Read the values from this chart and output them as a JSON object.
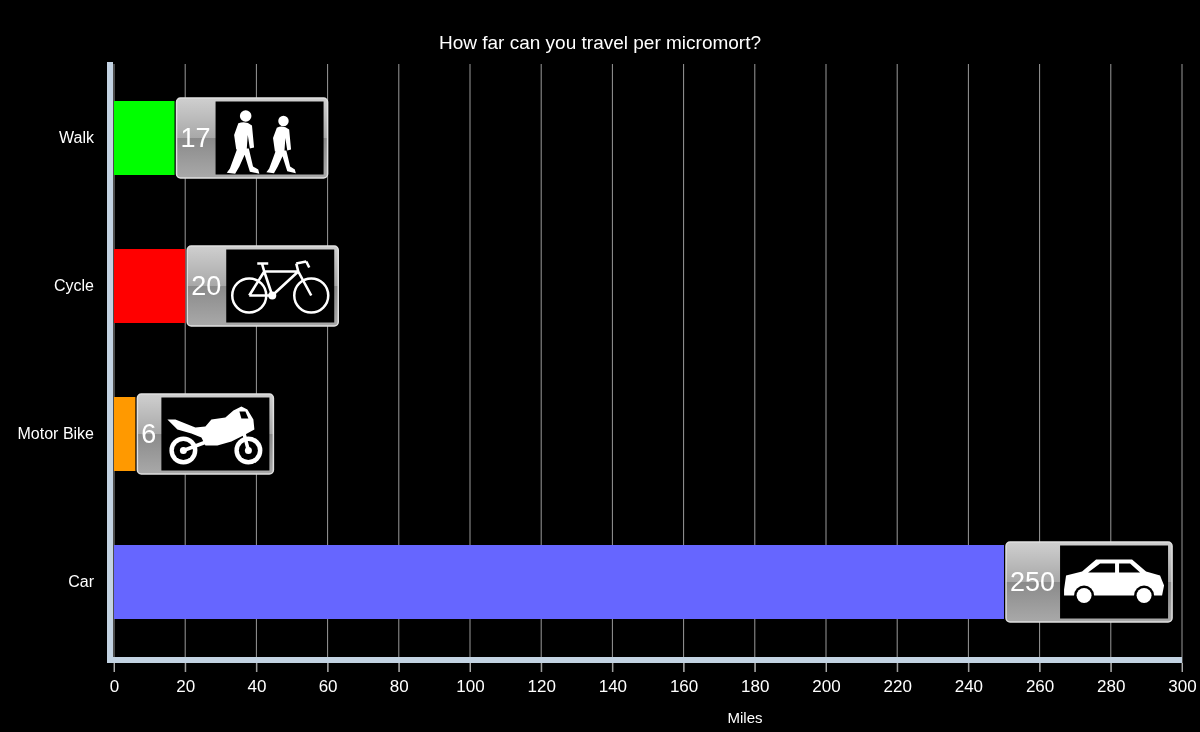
{
  "chart_data": {
    "type": "bar",
    "orientation": "horizontal",
    "title": "How far can you travel per micromort?",
    "xlabel": "Miles",
    "categories": [
      "Walk",
      "Cycle",
      "Motor Bike",
      "Car"
    ],
    "values": [
      17,
      20,
      6,
      250
    ],
    "colors": [
      "#00ff00",
      "#ff0000",
      "#ff9900",
      "#6666ff"
    ],
    "xlim": [
      0,
      300
    ],
    "xticks": [
      0,
      20,
      40,
      60,
      80,
      100,
      120,
      140,
      160,
      180,
      200,
      220,
      240,
      260,
      280,
      300
    ],
    "grid": "x",
    "data_labels": true
  }
}
